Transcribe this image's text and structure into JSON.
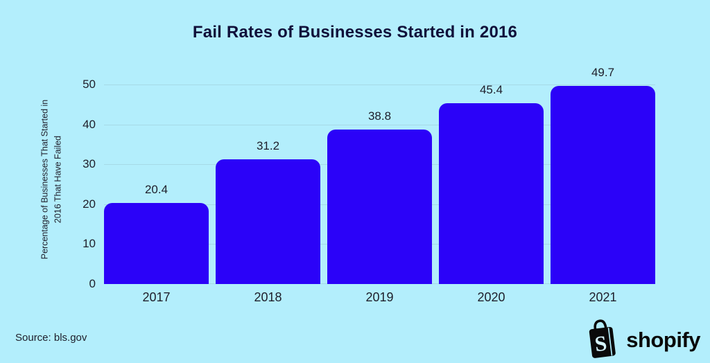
{
  "chart_data": {
    "type": "bar",
    "title": "Fail Rates of Businesses Started in 2016",
    "categories": [
      "2017",
      "2018",
      "2019",
      "2020",
      "2021"
    ],
    "values": [
      20.4,
      31.2,
      38.8,
      45.4,
      49.7
    ],
    "xlabel": "",
    "ylabel": "Percentage of Businesses That Started in 2016 That Have Failed",
    "ylabel_lines": [
      "Percentage of Businesses That Started in",
      "2016 That Have Failed"
    ],
    "yticks": [
      0,
      10,
      20,
      30,
      40,
      50
    ],
    "ylim": [
      0,
      50
    ],
    "grid": "horizontal",
    "legend": "none",
    "colors": {
      "background": "#B3EEFC",
      "bar": "#2B02F8",
      "gridline": "#A6DAE6",
      "title_text": "#10103A",
      "label_text": "#1E1E2A",
      "logo": "#0A0A0A"
    }
  },
  "footer": {
    "source_label": "Source: bls.gov",
    "brand": "shopify"
  }
}
